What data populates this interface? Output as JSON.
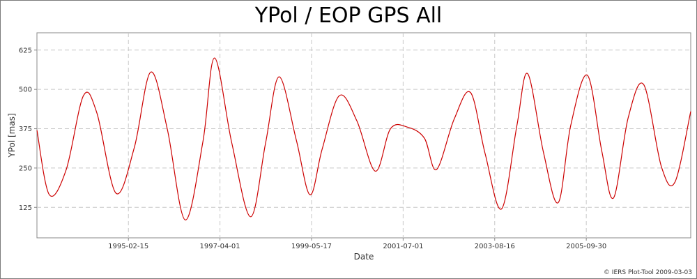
{
  "chart_data": {
    "type": "line",
    "title": "YPol / EOP GPS All",
    "xlabel": "Date",
    "ylabel": "YPol [mas]",
    "x_start": "1993-01-01",
    "x_end": "2008-03-03",
    "xlim": [
      "1993-01-01",
      "2008-03-03"
    ],
    "ylim": [
      28,
      680
    ],
    "x_ticks": [
      "1995-02-15",
      "1997-04-01",
      "1999-05-17",
      "2001-07-01",
      "2003-08-16",
      "2005-09-30"
    ],
    "y_ticks": [
      125,
      250,
      375,
      500,
      625
    ],
    "grid": true,
    "legend": "none",
    "series": [
      {
        "color": "#cc0000",
        "x": [
          "1993-01-01",
          "1993-04-16",
          "1993-09-06",
          "1994-01-30",
          "1994-05-24",
          "1994-11-02",
          "1995-04-06",
          "1995-08-23",
          "1996-01-10",
          "1996-06-10",
          "1996-11-08",
          "1997-02-14",
          "1997-07-10",
          "1997-12-17",
          "1998-04-23",
          "1998-08-15",
          "1999-01-07",
          "1999-05-04",
          "1999-08-15",
          "2000-01-07",
          "2000-06-04",
          "2000-11-08",
          "2001-03-16",
          "2001-08-07",
          "2001-12-28",
          "2002-04-09",
          "2002-09-06",
          "2003-01-23",
          "2003-05-27",
          "2003-10-13",
          "2004-02-20",
          "2004-05-21",
          "2004-10-02",
          "2005-02-04",
          "2005-05-21",
          "2005-10-09",
          "2006-02-08",
          "2006-05-19",
          "2006-09-20",
          "2007-01-30",
          "2007-06-28",
          "2007-10-21",
          "2008-03-03"
        ],
        "values": [
          370,
          165,
          245,
          480,
          425,
          170,
          315,
          555,
          375,
          85,
          335,
          600,
          330,
          95,
          330,
          540,
          340,
          165,
          310,
          480,
          400,
          240,
          375,
          380,
          345,
          245,
          405,
          490,
          295,
          120,
          385,
          550,
          300,
          140,
          385,
          545,
          305,
          155,
          410,
          515,
          255,
          205,
          430
        ]
      }
    ]
  },
  "footer": {
    "credit": "© IERS Plot-Tool 2009-03-03"
  }
}
